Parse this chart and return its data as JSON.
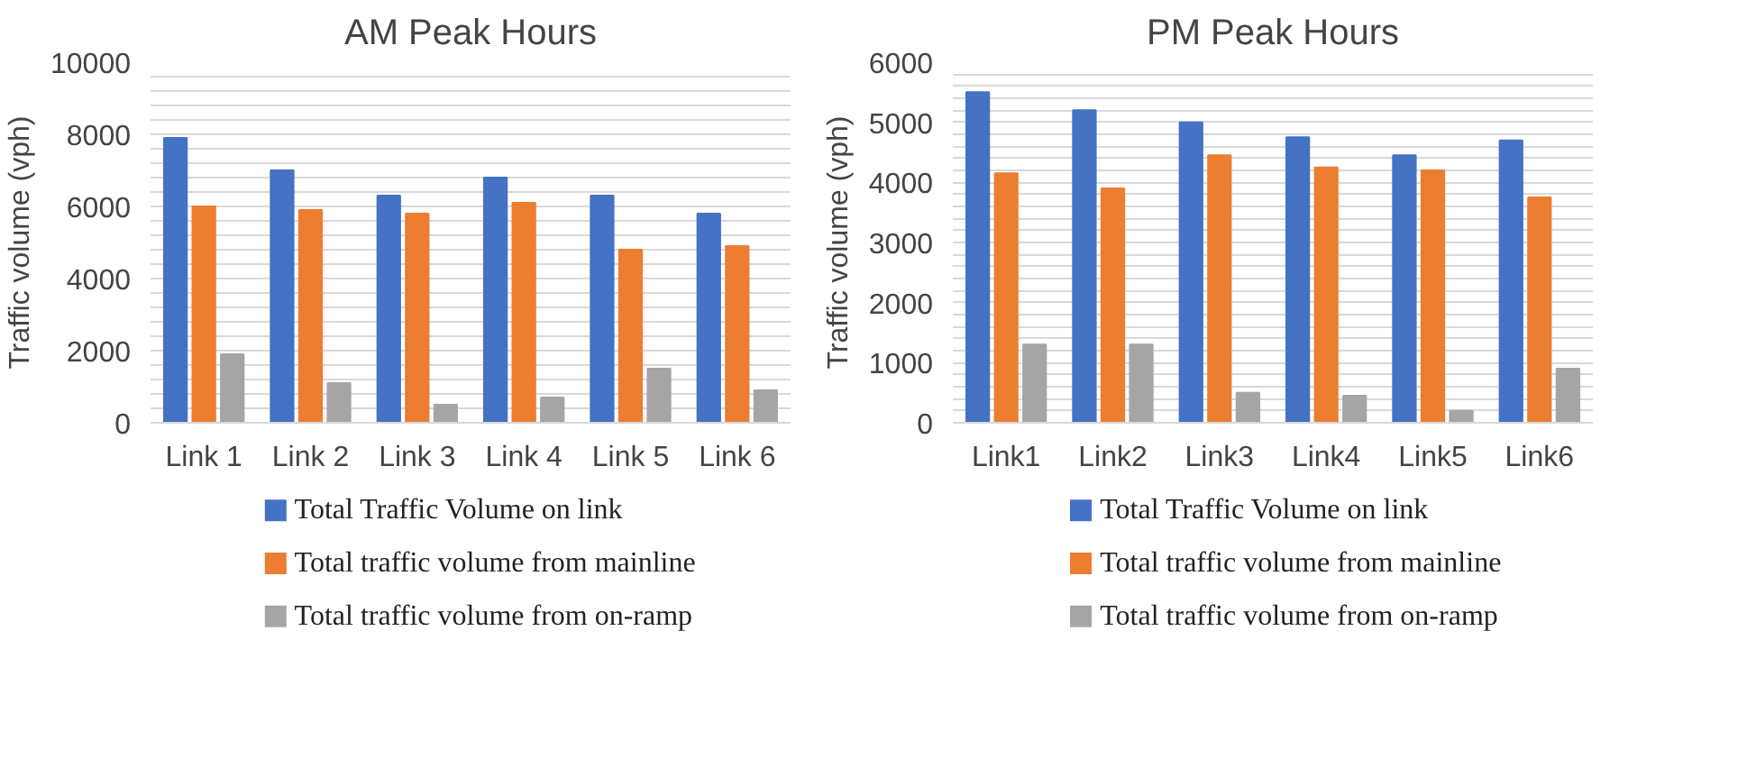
{
  "chart_data": [
    {
      "type": "bar",
      "title": "AM Peak Hours",
      "ylabel": "Traffic volume (vph)",
      "categories": [
        "Link 1",
        "Link 2",
        "Link 3",
        "Link 4",
        "Link 5",
        "Link 6"
      ],
      "series": [
        {
          "name": "Total  Traffic Volume on link",
          "color": "#4472c4",
          "values": [
            7900,
            7000,
            6300,
            6800,
            6300,
            5800
          ]
        },
        {
          "name": "Total traffic volume from mainline",
          "color": "#ed7d31",
          "values": [
            6000,
            5900,
            5800,
            6100,
            4800,
            4900
          ]
        },
        {
          "name": "Total traffic volume from on-ramp",
          "color": "#a5a5a5",
          "values": [
            1900,
            1100,
            500,
            700,
            1500,
            900
          ]
        }
      ],
      "ylim": [
        0,
        10000
      ],
      "yticks": [
        0,
        {
          "value": 400,
          "label": null
        },
        {
          "value": 800,
          "label": null
        },
        {
          "value": 1200,
          "label": null
        },
        {
          "value": 1600,
          "label": null
        },
        2000,
        {
          "value": 2400,
          "label": null
        },
        {
          "value": 2800,
          "label": null
        },
        {
          "value": 3200,
          "label": null
        },
        {
          "value": 3600,
          "label": null
        },
        4000,
        {
          "value": 4400,
          "label": null
        },
        {
          "value": 4800,
          "label": null
        },
        {
          "value": 5200,
          "label": null
        },
        {
          "value": 5600,
          "label": null
        },
        6000,
        {
          "value": 6400,
          "label": null
        },
        {
          "value": 6800,
          "label": null
        },
        {
          "value": 7200,
          "label": null
        },
        {
          "value": 7600,
          "label": null
        },
        8000,
        {
          "value": 8400,
          "label": null
        },
        {
          "value": 8800,
          "label": null
        },
        {
          "value": 9200,
          "label": null
        },
        {
          "value": 9600,
          "label": null
        },
        10000
      ],
      "grid": "y",
      "legend": "bottom"
    },
    {
      "type": "bar",
      "title": "PM Peak Hours",
      "ylabel": "Traffic volume (vph)",
      "categories": [
        "Link1",
        "Link2",
        "Link3",
        "Link4",
        "Link5",
        "Link6"
      ],
      "series": [
        {
          "name": "Total  Traffic Volume on link",
          "color": "#4472c4",
          "values": [
            5500,
            5200,
            5000,
            4750,
            4450,
            4700
          ]
        },
        {
          "name": "Total traffic volume from mainline",
          "color": "#ed7d31",
          "values": [
            4150,
            3900,
            4450,
            4250,
            4200,
            3750
          ]
        },
        {
          "name": "Total traffic volume from on-ramp",
          "color": "#a5a5a5",
          "values": [
            1300,
            1300,
            500,
            450,
            200,
            900
          ]
        }
      ],
      "ylim": [
        0,
        6000
      ],
      "yticks": [
        0,
        {
          "value": 200,
          "label": null
        },
        {
          "value": 400,
          "label": null
        },
        {
          "value": 600,
          "label": null
        },
        {
          "value": 800,
          "label": null
        },
        1000,
        {
          "value": 1200,
          "label": null
        },
        {
          "value": 1400,
          "label": null
        },
        {
          "value": 1600,
          "label": null
        },
        {
          "value": 1800,
          "label": null
        },
        2000,
        {
          "value": 2200,
          "label": null
        },
        {
          "value": 2400,
          "label": null
        },
        {
          "value": 2600,
          "label": null
        },
        {
          "value": 2800,
          "label": null
        },
        3000,
        {
          "value": 3200,
          "label": null
        },
        {
          "value": 3400,
          "label": null
        },
        {
          "value": 3600,
          "label": null
        },
        {
          "value": 3800,
          "label": null
        },
        4000,
        {
          "value": 4200,
          "label": null
        },
        {
          "value": 4400,
          "label": null
        },
        {
          "value": 4600,
          "label": null
        },
        {
          "value": 4800,
          "label": null
        },
        5000,
        {
          "value": 5200,
          "label": null
        },
        {
          "value": 5400,
          "label": null
        },
        {
          "value": 5600,
          "label": null
        },
        {
          "value": 5800,
          "label": null
        },
        6000
      ],
      "grid": "y",
      "legend": "bottom"
    }
  ]
}
